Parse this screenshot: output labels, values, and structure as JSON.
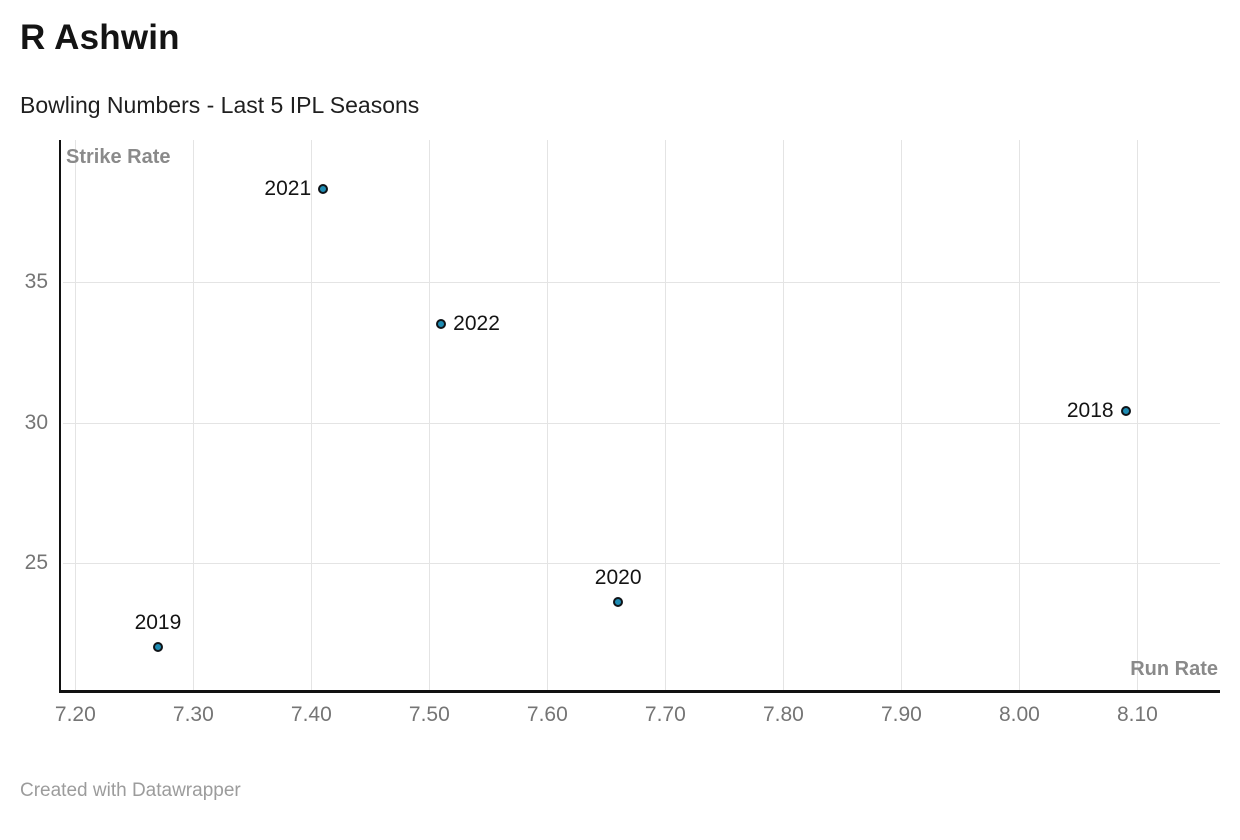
{
  "header": {
    "title": "R Ashwin",
    "subtitle": "Bowling Numbers - Last 5 IPL Seasons"
  },
  "footer": {
    "attribution": "Created with Datawrapper"
  },
  "chart_data": {
    "type": "scatter",
    "title": "R Ashwin",
    "subtitle": "Bowling Numbers - Last 5 IPL Seasons",
    "xlabel": "Run Rate",
    "ylabel": "Strike Rate",
    "grid": true,
    "legend": "none",
    "xlim": [
      7.187,
      8.17
    ],
    "ylim": [
      20.45,
      40.05
    ],
    "x_ticks": [
      7.2,
      7.3,
      7.4,
      7.5,
      7.6,
      7.7,
      7.8,
      7.9,
      8.0,
      8.1
    ],
    "x_tick_labels": [
      "7.20",
      "7.30",
      "7.40",
      "7.50",
      "7.60",
      "7.70",
      "7.80",
      "7.90",
      "8.00",
      "8.10"
    ],
    "y_ticks": [
      25,
      30,
      35
    ],
    "y_tick_labels": [
      "25",
      "30",
      "35"
    ],
    "point_color": "#1e8cb3",
    "point_stroke": "#101418",
    "points": [
      {
        "label": "2018",
        "x": 8.09,
        "y": 30.4,
        "label_position": "left"
      },
      {
        "label": "2019",
        "x": 7.27,
        "y": 22.0,
        "label_position": "top"
      },
      {
        "label": "2020",
        "x": 7.66,
        "y": 23.6,
        "label_position": "top"
      },
      {
        "label": "2021",
        "x": 7.41,
        "y": 38.3,
        "label_position": "left"
      },
      {
        "label": "2022",
        "x": 7.51,
        "y": 33.5,
        "label_position": "right"
      }
    ]
  }
}
